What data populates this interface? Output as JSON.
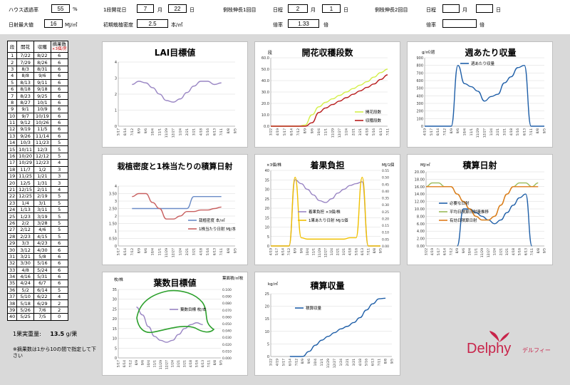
{
  "header": {
    "row1": [
      {
        "label": "ハウス透過率",
        "value": "55",
        "unit": "%"
      },
      {
        "label": "1段開花日",
        "month": "7",
        "mlabel": "月",
        "day": "22",
        "dlabel": "日"
      },
      {
        "label": "側枝伸長1回目",
        "title": "日程",
        "month": "2",
        "mlabel": "月",
        "day": "1",
        "dlabel": "日"
      },
      {
        "label": "側枝伸長2回目",
        "title": "日程",
        "month": "",
        "mlabel": "月",
        "day": "",
        "dlabel": "日"
      }
    ],
    "row2": [
      {
        "label": "日射最大値",
        "value": "16",
        "unit": "MJ/㎡"
      },
      {
        "label": "初期栽植密度",
        "value": "2.5",
        "unit": "本/㎡"
      },
      {
        "label": "倍率",
        "value": "1.33",
        "unit": "倍"
      },
      {
        "label": "倍率",
        "value": "",
        "unit": "倍"
      }
    ]
  },
  "table": {
    "headers": [
      "段",
      "開花",
      "収穫",
      "摘果数"
    ],
    "header_note": "×3個/房",
    "rows": [
      [
        "1",
        "7/22",
        "8/22",
        "6"
      ],
      [
        "2",
        "7/29",
        "8/26",
        "6"
      ],
      [
        "3",
        "8/3",
        "8/31",
        "6"
      ],
      [
        "4",
        "8/8",
        "9/6",
        "6"
      ],
      [
        "5",
        "8/13",
        "9/11",
        "6"
      ],
      [
        "6",
        "8/18",
        "9/18",
        "6"
      ],
      [
        "7",
        "8/23",
        "9/25",
        "6"
      ],
      [
        "8",
        "8/27",
        "10/1",
        "6"
      ],
      [
        "9",
        "9/1",
        "10/9",
        "6"
      ],
      [
        "10",
        "9/7",
        "10/19",
        "6"
      ],
      [
        "11",
        "9/12",
        "10/26",
        "6"
      ],
      [
        "12",
        "9/19",
        "11/5",
        "6"
      ],
      [
        "13",
        "9/26",
        "11/14",
        "6"
      ],
      [
        "14",
        "10/3",
        "11/23",
        "5"
      ],
      [
        "15",
        "10/11",
        "12/3",
        "5"
      ],
      [
        "16",
        "10/20",
        "12/12",
        "5"
      ],
      [
        "17",
        "10/29",
        "12/23",
        "4"
      ],
      [
        "18",
        "11/7",
        "1/2",
        "3"
      ],
      [
        "19",
        "11/25",
        "1/21",
        "3"
      ],
      [
        "20",
        "12/5",
        "1/31",
        "3"
      ],
      [
        "21",
        "12/15",
        "2/11",
        "4"
      ],
      [
        "22",
        "12/25",
        "2/19",
        "5"
      ],
      [
        "23",
        "1/4",
        "3/1",
        "5"
      ],
      [
        "24",
        "1/13",
        "3/11",
        "5"
      ],
      [
        "25",
        "1/23",
        "3/19",
        "5"
      ],
      [
        "26",
        "2/2",
        "3/28",
        "5"
      ],
      [
        "27",
        "2/12",
        "4/6",
        "5"
      ],
      [
        "28",
        "2/23",
        "4/15",
        "5"
      ],
      [
        "29",
        "3/3",
        "4/23",
        "6"
      ],
      [
        "30",
        "3/12",
        "4/30",
        "6"
      ],
      [
        "31",
        "3/21",
        "5/8",
        "6"
      ],
      [
        "32",
        "3/30",
        "5/16",
        "6"
      ],
      [
        "33",
        "4/8",
        "5/24",
        "6"
      ],
      [
        "34",
        "4/16",
        "5/31",
        "6"
      ],
      [
        "35",
        "4/24",
        "6/7",
        "6"
      ],
      [
        "36",
        "5/2",
        "6/14",
        "5"
      ],
      [
        "37",
        "5/10",
        "6/22",
        "4"
      ],
      [
        "38",
        "5/18",
        "6/29",
        "2"
      ],
      [
        "39",
        "5/26",
        "7/6",
        "2"
      ],
      [
        "40",
        "5/25",
        "7/5",
        "0"
      ]
    ]
  },
  "fruit_weight": {
    "label": "1果実重量:",
    "value": "13.5",
    "unit": "g/果"
  },
  "note_text": "※摘果数は1から10の間で指定して下さい",
  "brand": {
    "name": "Delphy",
    "kana": "デルフィー",
    "color": "#c8244a"
  },
  "colors": {
    "blue": "#6b8cc7",
    "red": "#c0504d",
    "green": "#2ca02c",
    "orange": "#e07b1b",
    "yellow": "#f0c000",
    "purple": "#9a86c4",
    "olive": "#9bbb59",
    "navy": "#1f5fa8",
    "lime": "#d4f04a"
  },
  "charts": {
    "lai": {
      "title": "LAI目標値"
    },
    "harvest": {
      "title": "開花収穫段数",
      "yunit": "段",
      "legend": [
        "開花段数",
        "収穫段数"
      ]
    },
    "weekly": {
      "title": "週あたり収量",
      "yunit": "g/㎡/週",
      "legend": [
        "週あたり収量"
      ]
    },
    "density": {
      "title": "栽植密度と1株当たりの積算日射",
      "legend": [
        "栽植密度 本/㎡",
        "1株当たり日射 MJ/本"
      ]
    },
    "load": {
      "title": "着果負担",
      "yleft": "×3個/株",
      "yright": "MJ/1個",
      "legend": [
        "着果負担 ×3個/株",
        "1果あたり日射 MJ/1個"
      ]
    },
    "solar": {
      "title": "積算日射",
      "yunit": "MJ/㎡",
      "legend": [
        "必要な日射",
        "平均日積算日射量推移",
        "有効日積算日射"
      ]
    },
    "leaf": {
      "title": "葉数目標値",
      "yleft": "枚/株",
      "yright": "葉面積/㎡枚",
      "legend": [
        "葉数目標 枚/本"
      ]
    },
    "cum": {
      "title": "積算収量",
      "yunit": "kg/㎡",
      "legend": [
        "積算収量"
      ]
    }
  },
  "chart_data": [
    {
      "type": "line",
      "title": "LAI目標値",
      "x": [
        "5/17",
        "6/14",
        "7/12",
        "8/9",
        "9/6",
        "10/4",
        "11/1",
        "11/29",
        "12/27",
        "1/24",
        "2/21",
        "3/21",
        "4/18",
        "5/16",
        "6/13",
        "7/11",
        "8/8",
        "9/5"
      ],
      "ylim": [
        0,
        4
      ],
      "series": [
        {
          "values": [
            null,
            null,
            2.6,
            2.8,
            2.7,
            2.4,
            2.0,
            1.6,
            1.5,
            1.7,
            2.1,
            2.5,
            2.8,
            2.8,
            2.6,
            2.7,
            null,
            null
          ]
        }
      ]
    },
    {
      "type": "line",
      "title": "開花収穫段数",
      "x": [
        "3/22",
        "4/19",
        "5/17",
        "6/14",
        "7/12",
        "8/9",
        "9/6",
        "10/4",
        "11/1",
        "11/29",
        "12/27",
        "1/24",
        "2/21",
        "3/21",
        "4/18",
        "5/16",
        "6/13",
        "7/11"
      ],
      "ylim": [
        0,
        60
      ],
      "series": [
        {
          "name": "開花段数",
          "values": [
            0,
            0,
            0,
            0,
            0,
            1,
            10,
            17,
            21,
            24,
            27,
            30,
            33,
            36,
            39,
            43,
            47,
            50
          ]
        },
        {
          "name": "収穫段数",
          "values": [
            0,
            0,
            0,
            0,
            0,
            0,
            3,
            12,
            16,
            19,
            22,
            25,
            28,
            31,
            34,
            37,
            41,
            45
          ]
        }
      ]
    },
    {
      "type": "line",
      "title": "週あたり収量",
      "x": [
        "4/19",
        "5/17",
        "6/14",
        "7/12",
        "8/9",
        "9/6",
        "10/4",
        "11/1",
        "11/29",
        "12/27",
        "1/24",
        "2/21",
        "3/21",
        "4/18",
        "5/16",
        "6/13",
        "7/11",
        "8/8",
        "9/5"
      ],
      "ylim": [
        0,
        900
      ],
      "series": [
        {
          "name": "週あたり収量",
          "values": [
            0,
            0,
            0,
            0,
            0,
            800,
            560,
            520,
            460,
            330,
            390,
            420,
            570,
            650,
            770,
            800,
            0,
            0,
            0
          ]
        }
      ]
    },
    {
      "type": "line",
      "title": "栽植密度と1株当たりの積算日射",
      "x": [
        "5/17",
        "6/14",
        "7/12",
        "8/9",
        "9/6",
        "10/4",
        "11/1",
        "11/29",
        "12/27",
        "1/24",
        "2/21",
        "3/21",
        "4/18",
        "5/16",
        "6/13",
        "7/11",
        "8/8",
        "9/5"
      ],
      "ylim": [
        0,
        4
      ],
      "series": [
        {
          "name": "栽植密度 本/㎡",
          "values": [
            null,
            null,
            2.5,
            2.5,
            2.5,
            2.5,
            2.5,
            2.5,
            2.5,
            2.5,
            2.5,
            3.3,
            3.3,
            3.3,
            3.3,
            3.3,
            null,
            null
          ]
        },
        {
          "name": "1株当たり日射 MJ/本",
          "values": [
            null,
            null,
            3.3,
            3.5,
            3.5,
            2.9,
            2.5,
            1.8,
            1.8,
            2.0,
            2.3,
            2.3,
            2.4,
            2.4,
            2.5,
            2.6,
            null,
            null
          ]
        }
      ]
    },
    {
      "type": "line",
      "title": "着果負担",
      "x": [
        "4/19",
        "5/17",
        "6/14",
        "7/12",
        "8/9",
        "9/6",
        "10/4",
        "11/1",
        "11/29",
        "12/27",
        "1/24",
        "2/21",
        "3/21",
        "4/18",
        "5/16",
        "6/13",
        "7/11",
        "8/8",
        "9/5"
      ],
      "ylim": [
        0,
        40
      ],
      "series": [
        {
          "name": "着果負担 ×3個/株",
          "values": [
            0,
            0,
            0,
            0,
            35,
            33,
            30,
            27,
            24,
            23,
            25,
            28,
            30,
            32,
            33,
            34,
            0,
            0,
            0
          ]
        },
        {
          "name": "1果あたり日射 MJ/1個",
          "values": [
            0,
            0,
            0,
            0,
            0.5,
            0.06,
            0.05,
            0.05,
            0.05,
            0.05,
            0.05,
            0.05,
            0.05,
            0.06,
            0.06,
            0.5,
            0,
            0,
            0
          ]
        }
      ]
    },
    {
      "type": "line",
      "title": "積算日射",
      "x": [
        "3/22",
        "4/19",
        "5/17",
        "6/14",
        "7/12",
        "8/9",
        "9/6",
        "10/4",
        "11/1",
        "11/29",
        "12/27",
        "1/24",
        "2/21",
        "3/21",
        "4/18",
        "5/16",
        "6/13",
        "7/11",
        "8/8",
        "9/5"
      ],
      "ylim": [
        0,
        20
      ],
      "series": [
        {
          "name": "必要な日射",
          "values": [
            null,
            null,
            null,
            null,
            null,
            0,
            10,
            10,
            9,
            8,
            7,
            6,
            7,
            9,
            11,
            13,
            14,
            0,
            null,
            null
          ]
        },
        {
          "name": "平均日積算日射量推移",
          "values": [
            16,
            17,
            17,
            16,
            16,
            14,
            12,
            10,
            8,
            7,
            7,
            8,
            11,
            14,
            16,
            17,
            17,
            16,
            17,
            null
          ]
        },
        {
          "name": "有効日積算日射",
          "values": [
            16,
            16,
            16,
            16,
            16,
            14,
            12,
            10,
            8,
            7,
            7,
            8,
            11,
            14,
            16,
            16,
            16,
            16,
            16,
            null
          ]
        }
      ]
    },
    {
      "type": "line",
      "title": "葉数目標値",
      "x": [
        "5/17",
        "6/14",
        "7/12",
        "8/9",
        "9/6",
        "10/4",
        "11/1",
        "11/29",
        "12/27",
        "1/24",
        "2/21",
        "3/21",
        "4/18",
        "5/16",
        "6/13",
        "7/11",
        "8/8",
        "9/5"
      ],
      "ylim": [
        0,
        35
      ],
      "series": [
        {
          "name": "葉数目標 枚/本",
          "values": [
            null,
            null,
            null,
            26,
            22,
            16,
            11,
            9,
            8,
            9,
            12,
            15,
            17,
            18,
            17,
            null,
            null,
            null
          ]
        }
      ]
    },
    {
      "type": "line",
      "title": "積算収量",
      "x": [
        "3/22",
        "4/19",
        "5/17",
        "6/14",
        "7/12",
        "8/9",
        "9/6",
        "10/4",
        "11/1",
        "11/29",
        "12/27",
        "1/24",
        "2/21",
        "3/21",
        "4/18",
        "5/16",
        "6/13",
        "7/11",
        "8/8",
        "9/5"
      ],
      "ylim": [
        0,
        25
      ],
      "series": [
        {
          "name": "積算収量",
          "values": [
            null,
            null,
            null,
            0,
            0,
            0,
            2,
            4.5,
            6.5,
            8,
            9.5,
            11,
            12,
            13.5,
            15.5,
            18.5,
            21,
            23,
            23.2,
            null
          ]
        }
      ]
    }
  ]
}
